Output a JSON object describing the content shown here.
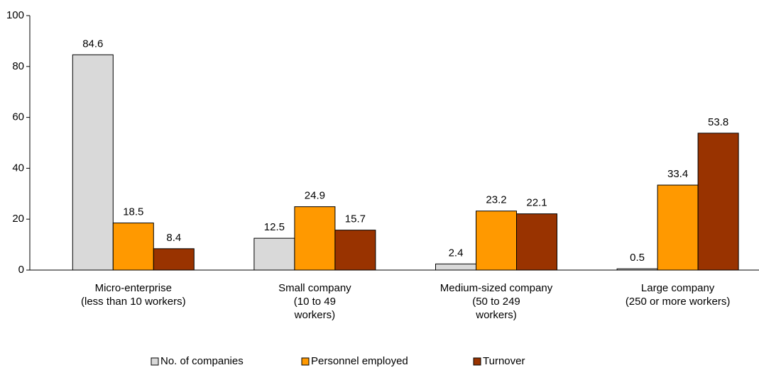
{
  "chart_data": {
    "type": "bar",
    "categories": [
      [
        "Micro-enterprise",
        "(less than 10 workers)"
      ],
      [
        "Small company",
        "(10 to 49",
        "workers)"
      ],
      [
        "Medium-sized company",
        "(50 to 249",
        "workers)"
      ],
      [
        "Large company",
        "(250 or more workers)"
      ]
    ],
    "series": [
      {
        "name": "No. of companies",
        "color": "#d9d9d9",
        "values": [
          84.6,
          12.5,
          2.4,
          0.5
        ]
      },
      {
        "name": "Personnel employed",
        "color": "#ff9900",
        "values": [
          18.5,
          24.9,
          23.2,
          33.4
        ]
      },
      {
        "name": "Turnover",
        "color": "#993300",
        "values": [
          8.4,
          15.7,
          22.1,
          53.8
        ]
      }
    ],
    "ylim": [
      0,
      100
    ],
    "yticks": [
      0,
      20,
      40,
      60,
      80,
      100
    ],
    "grid": false,
    "legend": "bottom"
  }
}
